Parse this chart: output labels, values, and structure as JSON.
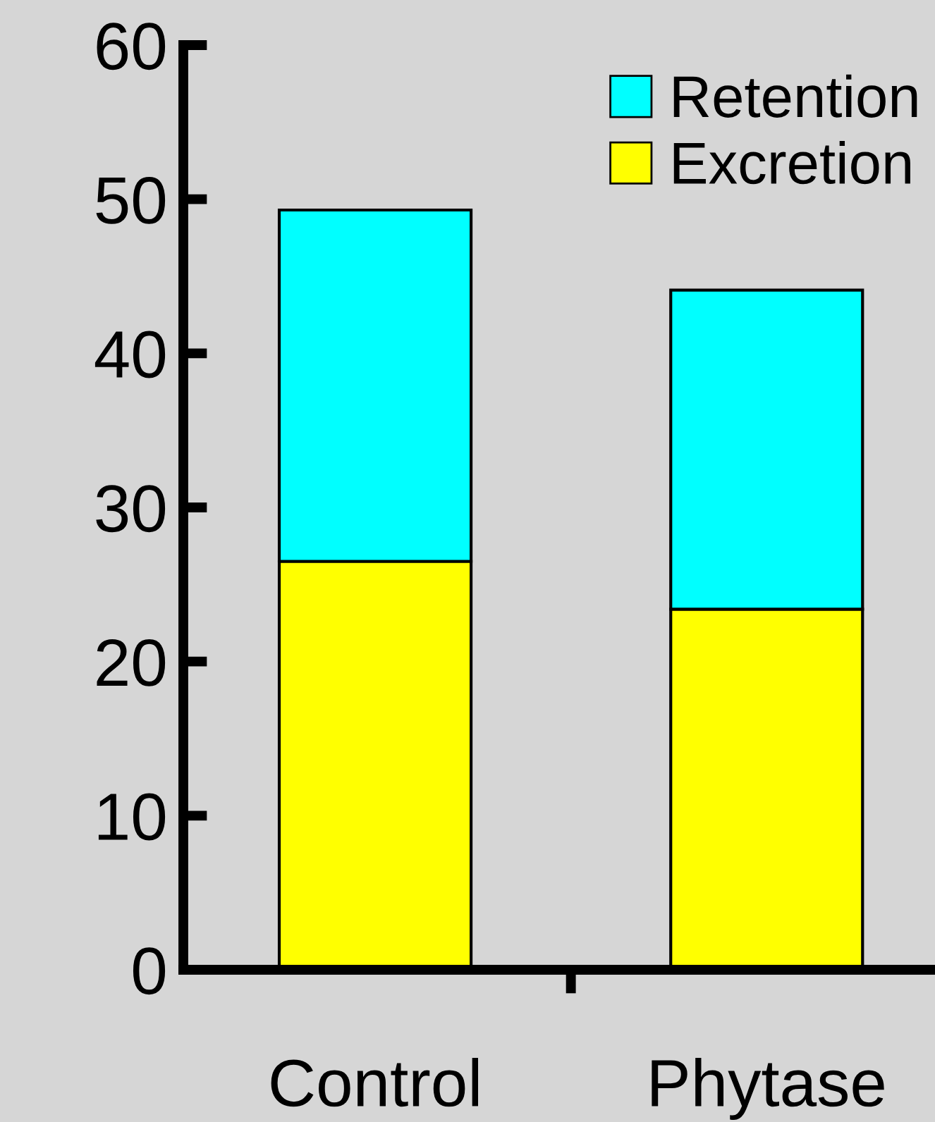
{
  "chart_data": {
    "type": "bar",
    "stacked": true,
    "categories": [
      "Control",
      "Phytase"
    ],
    "series": [
      {
        "name": "Excretion",
        "color": "#ffff00",
        "values": [
          26.5,
          23.4
        ]
      },
      {
        "name": "Retention",
        "color": "#00ffff",
        "values": [
          22.8,
          20.7
        ]
      }
    ],
    "ylim": [
      0,
      60
    ],
    "yticks": [
      0,
      10,
      20,
      30,
      40,
      50,
      60
    ],
    "grid": false,
    "legend": "top right"
  }
}
